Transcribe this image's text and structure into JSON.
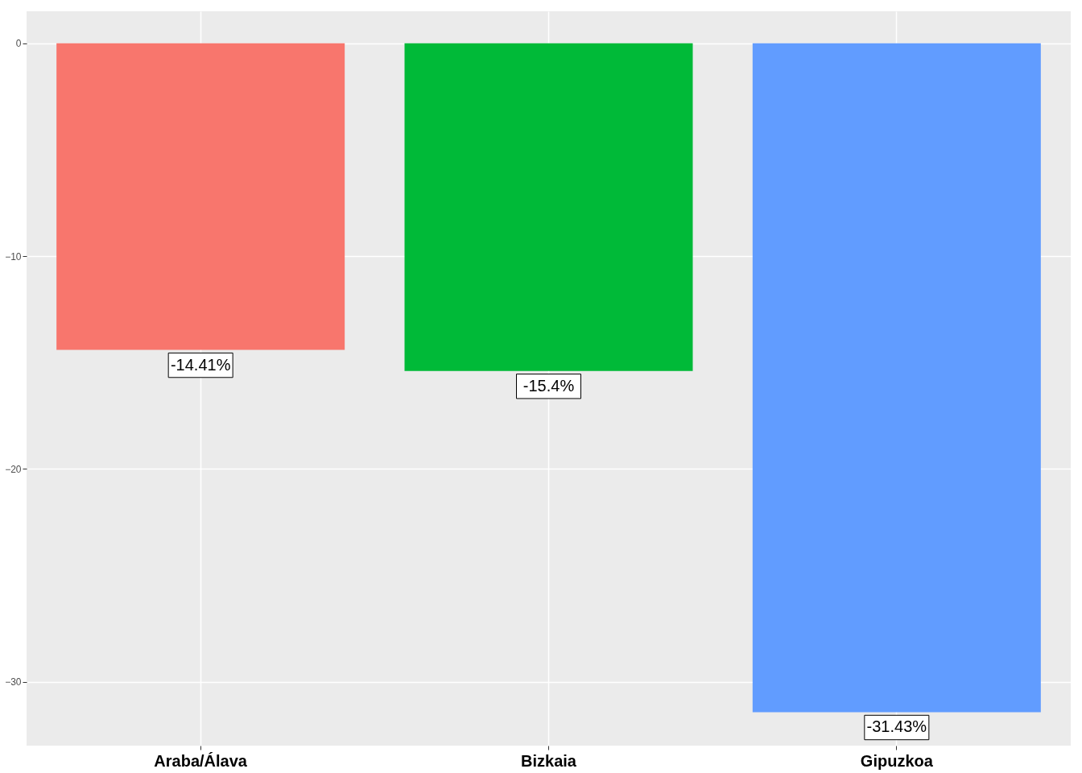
{
  "chart_data": {
    "type": "bar",
    "categories": [
      "Araba/Álava",
      "Bizkaia",
      "Gipuzkoa"
    ],
    "values": [
      -14.41,
      -15.4,
      -31.43
    ],
    "colors": [
      "#f8766d",
      "#00ba38",
      "#619cff"
    ],
    "value_labels": [
      "-14.41%",
      "-15.4%",
      "-31.43%"
    ],
    "ylim": [
      -33.0,
      1.5
    ],
    "yticks": [
      0,
      -10,
      -20,
      -30
    ],
    "grid": true
  }
}
